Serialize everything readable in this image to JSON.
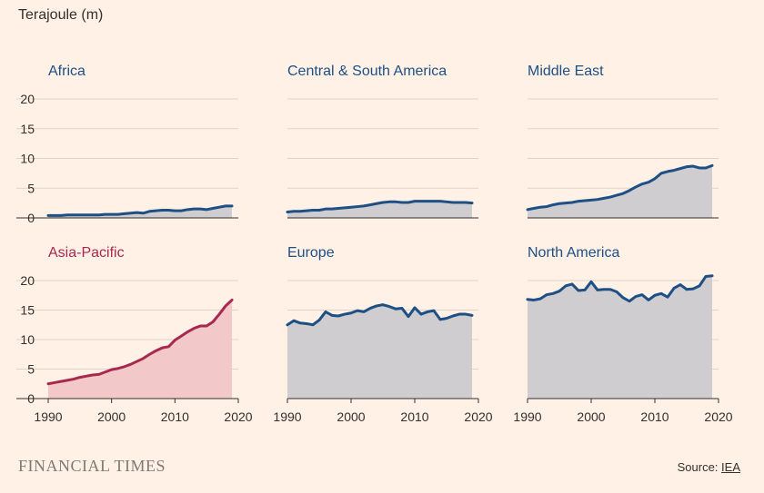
{
  "unit_label": "Terajoule (m)",
  "footer": {
    "logo_text": "FINANCIAL TIMES",
    "source_prefix": "Source: ",
    "source_link": "IEA"
  },
  "colors": {
    "background": "#fff1e5",
    "line": "#1e4f85",
    "fill": "#cfcdd0",
    "highlight_line": "#a8294f",
    "highlight_fill": "#f2c8c9",
    "grid": "#e1d3c6",
    "axis": "#33302e"
  },
  "chart_data": [
    {
      "type": "area",
      "title": "Africa",
      "x": [
        1990,
        1991,
        1992,
        1993,
        1994,
        1995,
        1996,
        1997,
        1998,
        1999,
        2000,
        2001,
        2002,
        2003,
        2004,
        2005,
        2006,
        2007,
        2008,
        2009,
        2010,
        2011,
        2012,
        2013,
        2014,
        2015,
        2016,
        2017,
        2018,
        2019
      ],
      "values": [
        0.4,
        0.4,
        0.4,
        0.5,
        0.5,
        0.5,
        0.5,
        0.5,
        0.5,
        0.6,
        0.6,
        0.6,
        0.7,
        0.8,
        0.9,
        0.8,
        1.1,
        1.2,
        1.3,
        1.3,
        1.2,
        1.2,
        1.4,
        1.5,
        1.5,
        1.4,
        1.6,
        1.8,
        2.0,
        2.0
      ],
      "ylim": [
        0,
        20
      ],
      "yticks": [
        0,
        5,
        10,
        15,
        20
      ],
      "xlim": [
        1990,
        2020
      ],
      "xticks": [
        1990,
        2000,
        2010,
        2020
      ]
    },
    {
      "type": "area",
      "title": "Central & South America",
      "x": [
        1990,
        1991,
        1992,
        1993,
        1994,
        1995,
        1996,
        1997,
        1998,
        1999,
        2000,
        2001,
        2002,
        2003,
        2004,
        2005,
        2006,
        2007,
        2008,
        2009,
        2010,
        2011,
        2012,
        2013,
        2014,
        2015,
        2016,
        2017,
        2018,
        2019
      ],
      "values": [
        1.0,
        1.1,
        1.1,
        1.2,
        1.3,
        1.3,
        1.5,
        1.5,
        1.6,
        1.7,
        1.8,
        1.9,
        2.0,
        2.2,
        2.4,
        2.6,
        2.7,
        2.7,
        2.6,
        2.6,
        2.8,
        2.8,
        2.8,
        2.8,
        2.8,
        2.7,
        2.6,
        2.6,
        2.6,
        2.5
      ],
      "ylim": [
        0,
        20
      ],
      "yticks": [
        0,
        5,
        10,
        15,
        20
      ],
      "xlim": [
        1990,
        2020
      ],
      "xticks": [
        1990,
        2000,
        2010,
        2020
      ]
    },
    {
      "type": "area",
      "title": "Middle East",
      "x": [
        1990,
        1991,
        1992,
        1993,
        1994,
        1995,
        1996,
        1997,
        1998,
        1999,
        2000,
        2001,
        2002,
        2003,
        2004,
        2005,
        2006,
        2007,
        2008,
        2009,
        2010,
        2011,
        2012,
        2013,
        2014,
        2015,
        2016,
        2017,
        2018,
        2019
      ],
      "values": [
        1.4,
        1.6,
        1.8,
        1.9,
        2.2,
        2.4,
        2.5,
        2.6,
        2.8,
        2.9,
        3.0,
        3.1,
        3.3,
        3.5,
        3.8,
        4.1,
        4.6,
        5.2,
        5.7,
        6.0,
        6.6,
        7.5,
        7.8,
        8.0,
        8.3,
        8.6,
        8.7,
        8.4,
        8.4,
        8.8
      ],
      "ylim": [
        0,
        20
      ],
      "yticks": [
        0,
        5,
        10,
        15,
        20
      ],
      "xlim": [
        1990,
        2020
      ],
      "xticks": [
        1990,
        2000,
        2010,
        2020
      ]
    },
    {
      "type": "area",
      "title": "Asia-Pacific",
      "highlight": true,
      "x": [
        1990,
        1991,
        1992,
        1993,
        1994,
        1995,
        1996,
        1997,
        1998,
        1999,
        2000,
        2001,
        2002,
        2003,
        2004,
        2005,
        2006,
        2007,
        2008,
        2009,
        2010,
        2011,
        2012,
        2013,
        2014,
        2015,
        2016,
        2017,
        2018,
        2019
      ],
      "values": [
        2.5,
        2.7,
        2.9,
        3.1,
        3.3,
        3.6,
        3.8,
        4.0,
        4.1,
        4.5,
        4.9,
        5.1,
        5.4,
        5.8,
        6.3,
        6.8,
        7.5,
        8.1,
        8.6,
        8.8,
        9.9,
        10.6,
        11.3,
        11.9,
        12.3,
        12.3,
        13.0,
        14.3,
        15.7,
        16.7
      ],
      "ylim": [
        0,
        20
      ],
      "yticks": [
        0,
        5,
        10,
        15,
        20
      ],
      "xlim": [
        1990,
        2020
      ],
      "xticks": [
        1990,
        2000,
        2010,
        2020
      ]
    },
    {
      "type": "area",
      "title": "Europe",
      "x": [
        1990,
        1991,
        1992,
        1993,
        1994,
        1995,
        1996,
        1997,
        1998,
        1999,
        2000,
        2001,
        2002,
        2003,
        2004,
        2005,
        2006,
        2007,
        2008,
        2009,
        2010,
        2011,
        2012,
        2013,
        2014,
        2015,
        2016,
        2017,
        2018,
        2019
      ],
      "values": [
        12.5,
        13.2,
        12.8,
        12.7,
        12.5,
        13.3,
        14.7,
        14.1,
        14.0,
        14.3,
        14.5,
        14.9,
        14.7,
        15.3,
        15.7,
        15.9,
        15.6,
        15.2,
        15.3,
        13.9,
        15.4,
        14.3,
        14.7,
        14.9,
        13.4,
        13.6,
        14.0,
        14.3,
        14.3,
        14.1
      ],
      "ylim": [
        0,
        20
      ],
      "yticks": [
        0,
        5,
        10,
        15,
        20
      ],
      "xlim": [
        1990,
        2020
      ],
      "xticks": [
        1990,
        2000,
        2010,
        2020
      ]
    },
    {
      "type": "area",
      "title": "North America",
      "x": [
        1990,
        1991,
        1992,
        1993,
        1994,
        1995,
        1996,
        1997,
        1998,
        1999,
        2000,
        2001,
        2002,
        2003,
        2004,
        2005,
        2006,
        2007,
        2008,
        2009,
        2010,
        2011,
        2012,
        2013,
        2014,
        2015,
        2016,
        2017,
        2018,
        2019
      ],
      "values": [
        16.8,
        16.7,
        16.9,
        17.6,
        17.8,
        18.2,
        19.1,
        19.4,
        18.3,
        18.4,
        19.8,
        18.4,
        18.5,
        18.5,
        18.1,
        17.1,
        16.5,
        17.3,
        17.6,
        16.7,
        17.5,
        17.8,
        17.2,
        18.7,
        19.3,
        18.5,
        18.6,
        19.1,
        20.7,
        20.8
      ],
      "ylim": [
        0,
        20
      ],
      "yticks": [
        0,
        5,
        10,
        15,
        20
      ],
      "xlim": [
        1990,
        2020
      ],
      "xticks": [
        1990,
        2000,
        2010,
        2020
      ]
    }
  ]
}
